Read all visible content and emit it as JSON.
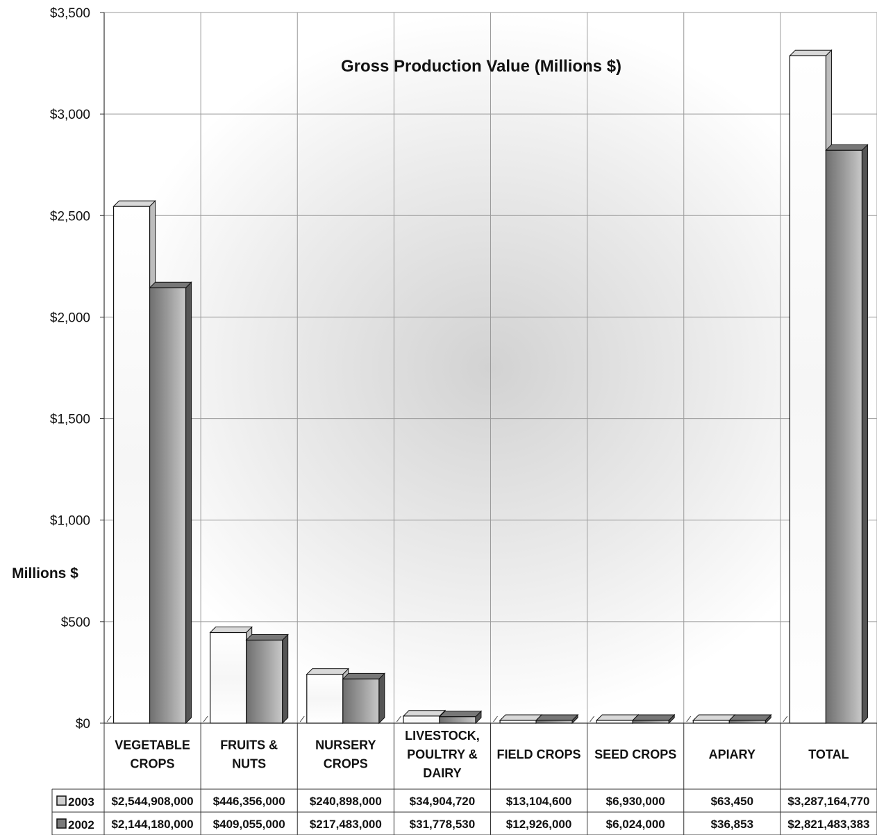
{
  "chart_data": {
    "type": "bar",
    "title": "Gross Production Value (Millions $)",
    "ylabel": "Millions $",
    "ylim": [
      0,
      3500
    ],
    "yticks": [
      0,
      500,
      1000,
      1500,
      2000,
      2500,
      3000,
      3500
    ],
    "ytick_labels": [
      "$0",
      "$500",
      "$1,000",
      "$1,500",
      "$2,000",
      "$2,500",
      "$3,000",
      "$3,500"
    ],
    "grid": true,
    "categories": [
      [
        "VEGETABLE",
        "CROPS"
      ],
      [
        "FRUITS &",
        "NUTS"
      ],
      [
        "NURSERY",
        "CROPS"
      ],
      [
        "LIVESTOCK,",
        "POULTRY &",
        "DAIRY"
      ],
      [
        "FIELD CROPS"
      ],
      [
        "SEED CROPS"
      ],
      [
        "APIARY"
      ],
      [
        "TOTAL"
      ]
    ],
    "series": [
      {
        "name": "2003",
        "color": "#ffffff",
        "values": [
          2544.908,
          446.356,
          240.898,
          34.90472,
          13.1046,
          6.93,
          0.06345,
          3287.16477
        ],
        "labels": [
          "$2,544,908,000",
          "$446,356,000",
          "$240,898,000",
          "$34,904,720",
          "$13,104,600",
          "$6,930,000",
          "$63,450",
          "$3,287,164,770"
        ]
      },
      {
        "name": "2002",
        "color": "#8a8a8a",
        "values": [
          2144.18,
          409.055,
          217.483,
          31.77853,
          12.926,
          6.024,
          0.036853,
          2821.483383
        ],
        "labels": [
          "$2,144,180,000",
          "$409,055,000",
          "$217,483,000",
          "$31,778,530",
          "$12,926,000",
          "$6,024,000",
          "$36,853",
          "$2,821,483,383"
        ]
      }
    ]
  }
}
